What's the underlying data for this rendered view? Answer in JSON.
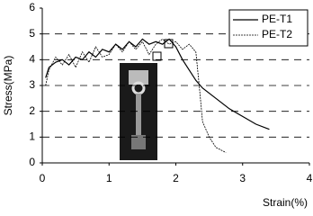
{
  "chart_data": {
    "type": "line",
    "xlabel": "Strain(%)",
    "ylabel": "Stress(MPa)",
    "xlim": [
      0,
      4
    ],
    "xticks": [
      0,
      1,
      2,
      3,
      4
    ],
    "ylim": [
      0,
      6
    ],
    "yticks": [
      0,
      1,
      2,
      3,
      4,
      5,
      6
    ],
    "grid": "y",
    "legend": "upper right",
    "series": [
      {
        "name": "PE-T1",
        "color": "#000000",
        "style": "solid",
        "x": [
          0.05,
          0.1,
          0.2,
          0.3,
          0.4,
          0.5,
          0.6,
          0.7,
          0.8,
          0.9,
          1.0,
          1.1,
          1.2,
          1.3,
          1.4,
          1.5,
          1.6,
          1.7,
          1.8,
          1.9,
          2.0,
          2.1,
          2.2,
          2.3,
          2.4,
          2.6,
          2.8,
          3.0,
          3.2,
          3.4
        ],
        "values": [
          3.3,
          3.7,
          3.9,
          4.0,
          3.8,
          4.1,
          4.0,
          4.3,
          4.1,
          4.4,
          4.3,
          4.6,
          4.4,
          4.7,
          4.5,
          4.8,
          4.6,
          4.7,
          4.6,
          4.8,
          4.5,
          4.0,
          3.6,
          3.2,
          2.9,
          2.5,
          2.1,
          1.8,
          1.5,
          1.3
        ]
      },
      {
        "name": "PE-T2",
        "color": "#000000",
        "style": "dotted",
        "x": [
          0.05,
          0.1,
          0.2,
          0.3,
          0.4,
          0.5,
          0.6,
          0.7,
          0.8,
          0.9,
          1.0,
          1.1,
          1.2,
          1.3,
          1.4,
          1.5,
          1.6,
          1.7,
          1.8,
          1.9,
          2.0,
          2.1,
          2.2,
          2.3,
          2.35,
          2.4,
          2.5,
          2.6,
          2.75
        ],
        "values": [
          3.0,
          3.6,
          4.1,
          3.8,
          4.2,
          3.7,
          4.3,
          3.9,
          4.5,
          4.1,
          4.2,
          4.6,
          4.3,
          4.7,
          4.4,
          4.7,
          4.2,
          4.6,
          4.8,
          4.6,
          4.7,
          4.4,
          4.6,
          4.3,
          3.0,
          1.6,
          1.0,
          0.6,
          0.4
        ]
      }
    ]
  }
}
